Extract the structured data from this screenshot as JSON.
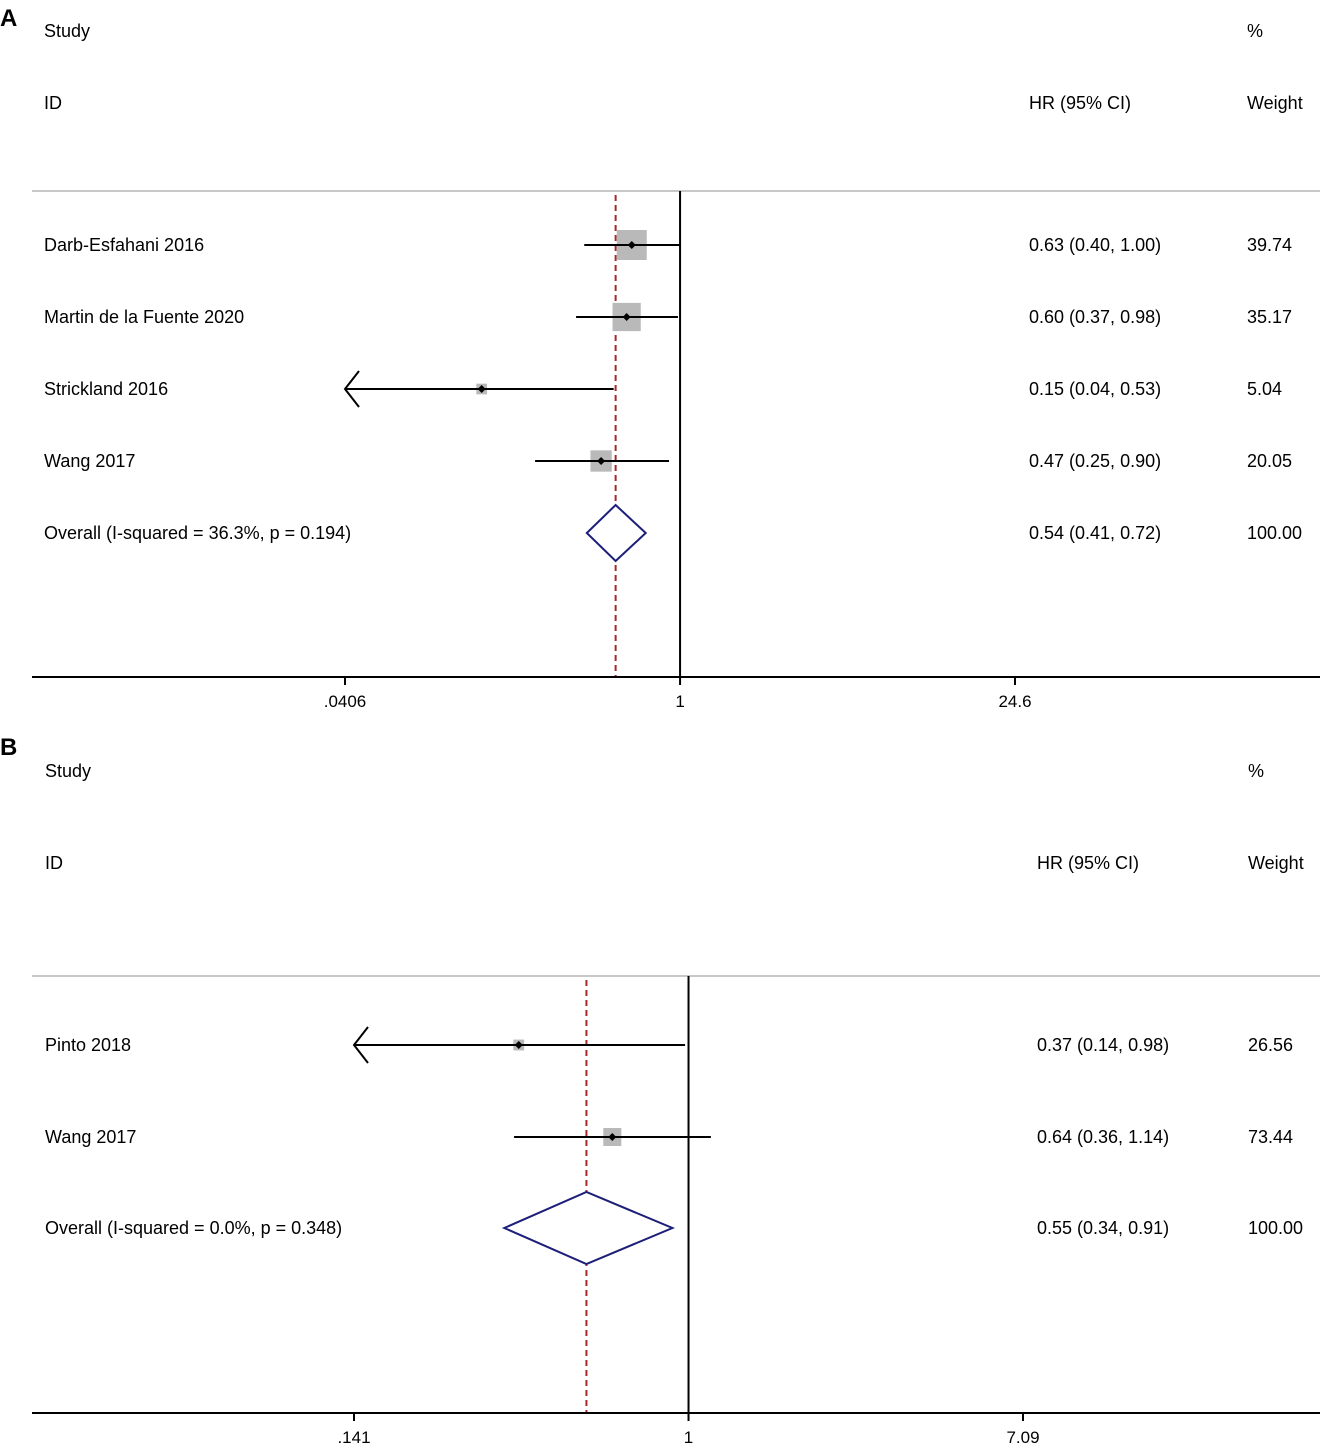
{
  "chart_data": [
    {
      "type": "forest",
      "panel_label": "A",
      "headers": {
        "study_top": "Study",
        "study_bottom": "ID",
        "effect": "HR (95% CI)",
        "weight_top": "%",
        "weight_bottom": "Weight"
      },
      "x_scale": "log",
      "xlim": [
        0.0406,
        24.6
      ],
      "x_ticks": [
        ".0406",
        "1",
        "24.6"
      ],
      "x_tick_values": [
        0.0406,
        1,
        24.6
      ],
      "null_line": 1,
      "overall_line": 0.54,
      "studies": [
        {
          "label": "Darb-Esfahani 2016",
          "hr": 0.63,
          "lo": 0.4,
          "hi": 1.0,
          "ci_text": "0.63 (0.40, 1.00)",
          "weight": 39.74,
          "weight_text": "39.74"
        },
        {
          "label": "Martin de la Fuente 2020",
          "hr": 0.6,
          "lo": 0.37,
          "hi": 0.98,
          "ci_text": "0.60 (0.37, 0.98)",
          "weight": 35.17,
          "weight_text": "35.17"
        },
        {
          "label": "Strickland 2016",
          "hr": 0.15,
          "lo": 0.04,
          "hi": 0.53,
          "ci_text": "0.15 (0.04, 0.53)",
          "weight": 5.04,
          "weight_text": "5.04",
          "lower_truncated": true
        },
        {
          "label": "Wang 2017",
          "hr": 0.47,
          "lo": 0.25,
          "hi": 0.9,
          "ci_text": "0.47 (0.25, 0.90)",
          "weight": 20.05,
          "weight_text": "20.05"
        }
      ],
      "overall": {
        "label": "Overall  (I-squared = 36.3%, p = 0.194)",
        "hr": 0.54,
        "lo": 0.41,
        "hi": 0.72,
        "ci_text": "0.54 (0.41, 0.72)",
        "weight_text": "100.00"
      },
      "colors": {
        "box": "#b9b9b9",
        "diamond": "#1c1f78",
        "overall_line": "#a52a2a",
        "line": "#000000"
      }
    },
    {
      "type": "forest",
      "panel_label": "B",
      "headers": {
        "study_top": "Study",
        "study_bottom": "ID",
        "effect": "HR (95% CI)",
        "weight_top": "%",
        "weight_bottom": "Weight"
      },
      "x_scale": "log",
      "xlim": [
        0.141,
        7.09
      ],
      "x_ticks": [
        ".141",
        "1",
        "7.09"
      ],
      "x_tick_values": [
        0.141,
        1,
        7.09
      ],
      "null_line": 1,
      "overall_line": 0.55,
      "studies": [
        {
          "label": "Pinto 2018",
          "hr": 0.37,
          "lo": 0.14,
          "hi": 0.98,
          "ci_text": "0.37 (0.14, 0.98)",
          "weight": 26.56,
          "weight_text": "26.56"
        },
        {
          "label": "Wang 2017",
          "hr": 0.64,
          "lo": 0.36,
          "hi": 1.14,
          "ci_text": "0.64 (0.36, 1.14)",
          "weight": 73.44,
          "weight_text": "73.44"
        }
      ],
      "overall": {
        "label": "Overall  (I-squared = 0.0%, p = 0.348)",
        "hr": 0.55,
        "lo": 0.34,
        "hi": 0.91,
        "ci_text": "0.55 (0.34, 0.91)",
        "weight_text": "100.00"
      },
      "colors": {
        "box": "#b9b9b9",
        "diamond": "#1c1f78",
        "overall_line": "#a52a2a",
        "line": "#000000"
      }
    }
  ]
}
